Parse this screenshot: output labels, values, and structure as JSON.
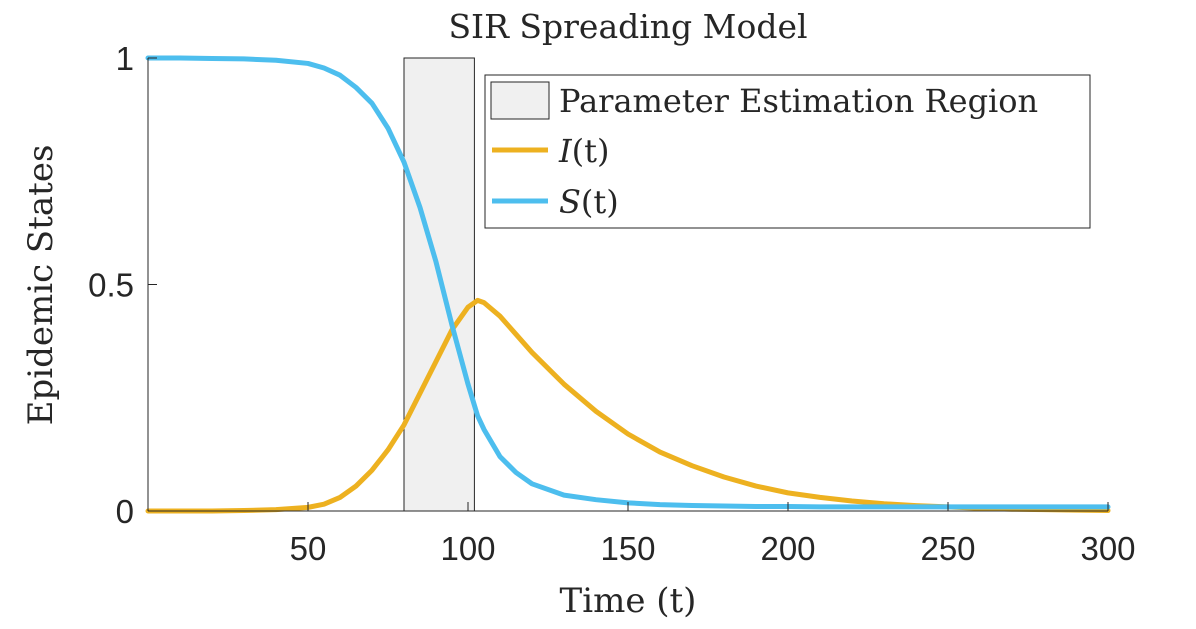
{
  "colors": {
    "infected": "#EDB120",
    "susceptible": "#4DBEEE",
    "region_fill": "#F0F0F0",
    "region_stroke": "#262626",
    "axis": "#262626"
  },
  "chart_data": {
    "type": "line",
    "title": "SIR Spreading Model",
    "xlabel": "Time (t)",
    "ylabel": "Epidemic States",
    "xlim": [
      0,
      300
    ],
    "ylim": [
      0,
      1
    ],
    "xticks": [
      50,
      100,
      150,
      200,
      250,
      300
    ],
    "xtick_labels": [
      "50",
      "100",
      "150",
      "200",
      "250",
      "300"
    ],
    "yticks": [
      0,
      0.5,
      1
    ],
    "ytick_labels": [
      "0",
      "0.5",
      "1"
    ],
    "region": {
      "name": "Parameter Estimation Region",
      "x_start": 80,
      "x_end": 102
    },
    "x": [
      0,
      10,
      20,
      30,
      40,
      50,
      55,
      60,
      65,
      70,
      75,
      80,
      85,
      90,
      95,
      100,
      103,
      105,
      110,
      115,
      120,
      130,
      140,
      150,
      160,
      170,
      180,
      190,
      200,
      210,
      220,
      230,
      240,
      250,
      260,
      270,
      280,
      290,
      300
    ],
    "series": [
      {
        "name": "I(t)",
        "label_main": "I",
        "label_arg": "(t)",
        "color_key": "infected",
        "values": [
          0.0,
          0.0,
          0.0,
          0.001,
          0.003,
          0.008,
          0.015,
          0.03,
          0.055,
          0.09,
          0.135,
          0.19,
          0.26,
          0.33,
          0.4,
          0.45,
          0.465,
          0.46,
          0.43,
          0.39,
          0.35,
          0.28,
          0.22,
          0.17,
          0.13,
          0.1,
          0.075,
          0.055,
          0.04,
          0.03,
          0.022,
          0.016,
          0.012,
          0.009,
          0.006,
          0.004,
          0.003,
          0.002,
          0.001
        ]
      },
      {
        "name": "S(t)",
        "label_main": "S",
        "label_arg": "(t)",
        "color_key": "susceptible",
        "values": [
          1.0,
          1.0,
          0.999,
          0.998,
          0.995,
          0.988,
          0.978,
          0.962,
          0.935,
          0.9,
          0.845,
          0.77,
          0.67,
          0.55,
          0.41,
          0.28,
          0.21,
          0.18,
          0.12,
          0.085,
          0.06,
          0.035,
          0.025,
          0.018,
          0.014,
          0.012,
          0.011,
          0.01,
          0.01,
          0.009,
          0.009,
          0.009,
          0.009,
          0.009,
          0.009,
          0.009,
          0.009,
          0.009,
          0.009
        ]
      }
    ],
    "legend_location": "top-right"
  }
}
